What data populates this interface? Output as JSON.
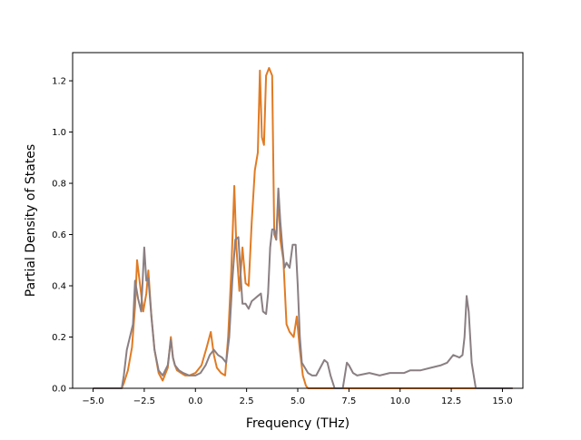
{
  "chart_data": {
    "type": "line",
    "title": "",
    "xlabel": "Frequency (THz)",
    "ylabel": "Partial Density of States",
    "xlim": [
      -6.0,
      16.0
    ],
    "ylim": [
      0.0,
      1.31
    ],
    "x_ticks": [
      -5.0,
      -2.5,
      0.0,
      2.5,
      5.0,
      7.5,
      10.0,
      12.5,
      15.0
    ],
    "x_tick_labels": [
      "−5.0",
      "−2.5",
      "0.0",
      "2.5",
      "5.0",
      "7.5",
      "10.0",
      "12.5",
      "15.0"
    ],
    "y_ticks": [
      0.0,
      0.2,
      0.4,
      0.6,
      0.8,
      1.0,
      1.2
    ],
    "y_tick_labels": [
      "0.0",
      "0.2",
      "0.4",
      "0.6",
      "0.8",
      "1.0",
      "1.2"
    ],
    "grid": false,
    "legend": "none",
    "series": [
      {
        "color": "#e07b24",
        "x": [
          -5.0,
          -3.6,
          -3.5,
          -3.3,
          -3.1,
          -2.95,
          -2.85,
          -2.7,
          -2.55,
          -2.4,
          -2.3,
          -2.15,
          -2.0,
          -1.8,
          -1.6,
          -1.35,
          -1.2,
          -1.1,
          -1.0,
          -0.9,
          -0.7,
          -0.5,
          -0.3,
          0.0,
          0.3,
          0.55,
          0.75,
          0.9,
          1.05,
          1.25,
          1.45,
          1.6,
          1.75,
          1.9,
          2.0,
          2.15,
          2.3,
          2.45,
          2.6,
          2.75,
          2.9,
          3.05,
          3.15,
          3.25,
          3.35,
          3.45,
          3.6,
          3.75,
          3.85,
          3.95,
          4.05,
          4.15,
          4.3,
          4.45,
          4.6,
          4.8,
          4.95,
          5.1,
          5.25,
          5.4,
          5.5,
          6.0,
          7.0,
          8.0,
          13.0,
          13.2,
          13.35,
          13.5,
          15.5
        ],
        "y": [
          0.0,
          0.0,
          0.02,
          0.07,
          0.16,
          0.32,
          0.5,
          0.4,
          0.3,
          0.37,
          0.46,
          0.28,
          0.15,
          0.06,
          0.03,
          0.08,
          0.2,
          0.12,
          0.09,
          0.07,
          0.06,
          0.05,
          0.05,
          0.06,
          0.09,
          0.16,
          0.22,
          0.13,
          0.08,
          0.06,
          0.05,
          0.2,
          0.45,
          0.79,
          0.55,
          0.38,
          0.55,
          0.41,
          0.4,
          0.65,
          0.85,
          0.92,
          1.24,
          0.98,
          0.95,
          1.22,
          1.25,
          1.22,
          0.6,
          0.58,
          0.75,
          0.58,
          0.5,
          0.25,
          0.22,
          0.2,
          0.28,
          0.15,
          0.05,
          0.01,
          0.0,
          0.0,
          0.0,
          0.0,
          0.0,
          0.0,
          0.0,
          0.0,
          0.0
        ]
      },
      {
        "color": "#8a7f83",
        "x": [
          -5.0,
          -3.6,
          -3.5,
          -3.35,
          -3.2,
          -3.05,
          -2.95,
          -2.8,
          -2.65,
          -2.5,
          -2.4,
          -2.3,
          -2.15,
          -2.0,
          -1.8,
          -1.6,
          -1.35,
          -1.2,
          -1.1,
          -1.0,
          -0.8,
          -0.6,
          -0.3,
          0.0,
          0.25,
          0.5,
          0.7,
          0.9,
          1.1,
          1.3,
          1.5,
          1.65,
          1.8,
          1.95,
          2.1,
          2.2,
          2.3,
          2.45,
          2.6,
          2.75,
          2.9,
          3.05,
          3.2,
          3.3,
          3.45,
          3.55,
          3.65,
          3.75,
          3.85,
          3.95,
          4.05,
          4.15,
          4.25,
          4.35,
          4.45,
          4.6,
          4.75,
          4.9,
          5.0,
          5.1,
          5.2,
          5.35,
          5.5,
          5.7,
          5.9,
          6.1,
          6.3,
          6.45,
          6.6,
          6.8,
          7.0,
          7.2,
          7.4,
          7.5,
          7.7,
          7.9,
          8.5,
          9.0,
          9.5,
          9.8,
          10.2,
          10.5,
          11.0,
          11.5,
          12.0,
          12.3,
          12.6,
          12.9,
          13.05,
          13.15,
          13.25,
          13.35,
          13.5,
          13.7,
          15.5
        ],
        "y": [
          0.0,
          0.0,
          0.05,
          0.15,
          0.2,
          0.25,
          0.42,
          0.35,
          0.3,
          0.55,
          0.42,
          0.43,
          0.28,
          0.15,
          0.07,
          0.05,
          0.09,
          0.19,
          0.12,
          0.09,
          0.07,
          0.06,
          0.05,
          0.05,
          0.06,
          0.09,
          0.13,
          0.15,
          0.13,
          0.12,
          0.1,
          0.2,
          0.42,
          0.58,
          0.59,
          0.45,
          0.33,
          0.33,
          0.31,
          0.34,
          0.35,
          0.36,
          0.37,
          0.3,
          0.29,
          0.37,
          0.55,
          0.62,
          0.62,
          0.58,
          0.78,
          0.65,
          0.55,
          0.47,
          0.49,
          0.47,
          0.56,
          0.56,
          0.4,
          0.2,
          0.1,
          0.08,
          0.06,
          0.05,
          0.05,
          0.08,
          0.11,
          0.1,
          0.05,
          0.0,
          0.0,
          0.0,
          0.1,
          0.09,
          0.06,
          0.05,
          0.06,
          0.05,
          0.06,
          0.06,
          0.06,
          0.07,
          0.07,
          0.08,
          0.09,
          0.1,
          0.13,
          0.12,
          0.13,
          0.2,
          0.36,
          0.3,
          0.1,
          0.0,
          0.0
        ]
      }
    ]
  }
}
